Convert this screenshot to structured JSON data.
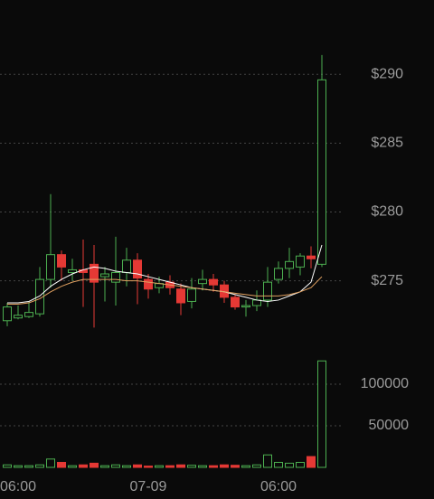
{
  "chart_data": [
    {
      "type": "candlestick",
      "categories": [
        null,
        "06:00",
        null,
        null,
        null,
        null,
        null,
        null,
        null,
        null,
        null,
        null,
        null,
        "07-09",
        null,
        null,
        null,
        null,
        null,
        null,
        null,
        null,
        null,
        null,
        null,
        "06:00",
        null,
        null,
        null,
        null
      ],
      "open": [
        272.1,
        272.3,
        272.4,
        272.6,
        275.1,
        276.9,
        275.6,
        275.8,
        276.2,
        275.3,
        274.9,
        275.6,
        276.5,
        275.1,
        274.5,
        274.9,
        274.4,
        273.5,
        274.8,
        275.1,
        274.7,
        273.8,
        273.1,
        273.2,
        273.6,
        275.1,
        275.9,
        276.0,
        276.8,
        276.2
      ],
      "high": [
        273.4,
        273.2,
        273.5,
        276.0,
        281.3,
        277.2,
        276.6,
        278.0,
        277.6,
        276.0,
        278.2,
        277.4,
        277.0,
        275.5,
        275.3,
        275.4,
        274.8,
        275.2,
        275.8,
        275.5,
        275.0,
        274.0,
        273.6,
        274.3,
        276.0,
        276.4,
        277.4,
        277.0,
        277.5,
        291.4
      ],
      "low": [
        271.7,
        272.2,
        272.3,
        272.4,
        274.5,
        275.0,
        275.0,
        273.1,
        271.6,
        273.5,
        273.2,
        274.6,
        273.3,
        273.7,
        274.1,
        274.0,
        272.5,
        273.0,
        274.3,
        274.2,
        273.4,
        272.9,
        272.4,
        272.8,
        273.1,
        274.8,
        275.2,
        275.4,
        275.9,
        276.0
      ],
      "close": [
        273.1,
        272.5,
        272.7,
        275.1,
        276.9,
        276.0,
        275.8,
        275.6,
        274.9,
        275.5,
        275.6,
        276.5,
        275.2,
        274.4,
        274.8,
        274.5,
        273.4,
        274.4,
        275.1,
        274.7,
        273.8,
        273.1,
        273.2,
        273.6,
        274.9,
        275.9,
        276.4,
        276.8,
        276.6,
        289.6
      ],
      "up_color": "#4caf50",
      "down_color": "#e53935",
      "series": [
        {
          "color": "#ffffff",
          "values": [
            273.4,
            273.4,
            273.5,
            273.9,
            274.6,
            275.1,
            275.5,
            275.8,
            276.0,
            275.9,
            275.7,
            275.6,
            275.5,
            275.3,
            275.1,
            274.9,
            274.7,
            274.5,
            274.4,
            274.3,
            274.2,
            274.0,
            273.8,
            273.6,
            273.5,
            273.6,
            273.9,
            274.2,
            274.9,
            277.6
          ]
        },
        {
          "color": "#e0a060",
          "values": [
            273.3,
            273.3,
            273.4,
            273.7,
            274.2,
            274.6,
            274.9,
            275.1,
            275.1,
            275.1,
            275.1,
            275.0,
            275.0,
            274.9,
            274.8,
            274.7,
            274.6,
            274.5,
            274.4,
            274.3,
            274.2,
            274.1,
            274.0,
            273.9,
            273.9,
            273.9,
            274.0,
            274.2,
            274.5,
            275.3
          ]
        }
      ],
      "ylim": [
        271.1,
        295.4
      ],
      "yticks": [
        {
          "value": 275,
          "label": "$275"
        },
        {
          "value": 280,
          "label": "$280"
        },
        {
          "value": 285,
          "label": "$285"
        },
        {
          "value": 290,
          "label": "$290"
        }
      ],
      "grid": true
    },
    {
      "type": "bar",
      "values": [
        3000,
        2000,
        2000,
        3000,
        10000,
        6000,
        2000,
        3000,
        5000,
        2000,
        3000,
        2000,
        3000,
        1500,
        2000,
        2000,
        3000,
        2500,
        2000,
        2000,
        3000,
        2500,
        2000,
        3000,
        15000,
        6000,
        5000,
        6000,
        13000,
        128000
      ],
      "ylim": [
        0,
        132600
      ],
      "yticks": [
        50000,
        100000
      ],
      "grid": true
    }
  ]
}
